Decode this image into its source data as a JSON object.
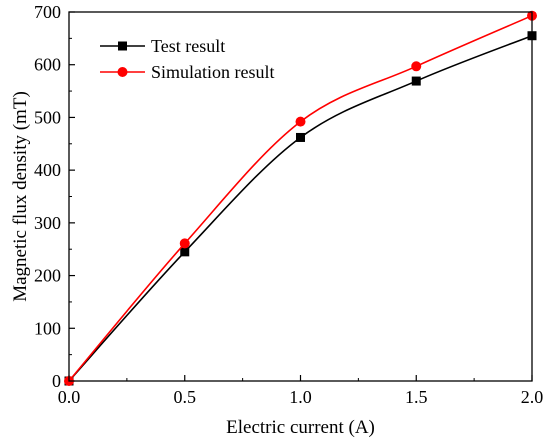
{
  "chart_data": {
    "type": "line",
    "title": "",
    "xlabel": "Electric current (A)",
    "ylabel": "Magnetic flux density (mT)",
    "xlim": [
      0.0,
      2.0
    ],
    "ylim": [
      0,
      700
    ],
    "x_ticks": [
      "0.0",
      "0.5",
      "1.0",
      "1.5",
      "2.0"
    ],
    "y_ticks": [
      "0",
      "100",
      "200",
      "300",
      "400",
      "500",
      "600",
      "700"
    ],
    "grid": false,
    "legend_position": "top-left",
    "series": [
      {
        "name": "Test result",
        "color": "#000000",
        "marker": "square",
        "x": [
          0.0,
          0.5,
          1.0,
          1.5,
          2.0
        ],
        "y": [
          0,
          245,
          462,
          569,
          655
        ]
      },
      {
        "name": "Simulation result",
        "color": "#ff0000",
        "marker": "circle",
        "x": [
          0.0,
          0.5,
          1.0,
          1.5,
          2.0
        ],
        "y": [
          0,
          261,
          492,
          597,
          693
        ]
      }
    ]
  }
}
